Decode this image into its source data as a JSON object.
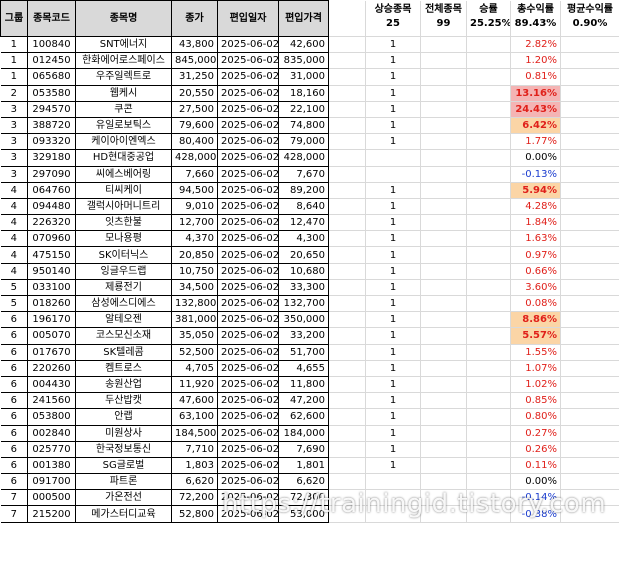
{
  "headers": {
    "group": "그룹",
    "code": "종목코드",
    "name": "종목명",
    "price": "종가",
    "date": "편입일자",
    "entry_price": "편입가격",
    "up_count": "상승종목",
    "total_count": "전체종목",
    "win_rate": "승률",
    "total_return": "총수익률",
    "avg_return": "평균수익률"
  },
  "summary": {
    "up_count": "25",
    "total_count": "99",
    "win_rate": "25.25%",
    "total_return": "89.43%",
    "avg_return": "0.90%"
  },
  "rows": [
    {
      "group": "1",
      "code": "100840",
      "name": "SNT에너지",
      "price": "43,800",
      "date": "2025-06-02",
      "entry": "42,600",
      "up": "1",
      "ret": "2.82%",
      "tone": "pos",
      "hl": ""
    },
    {
      "group": "1",
      "code": "012450",
      "name": "한화에어로스페이스",
      "price": "845,000",
      "date": "2025-06-02",
      "entry": "835,000",
      "up": "1",
      "ret": "1.20%",
      "tone": "pos",
      "hl": ""
    },
    {
      "group": "1",
      "code": "065680",
      "name": "우주일렉트로",
      "price": "31,250",
      "date": "2025-06-02",
      "entry": "31,000",
      "up": "1",
      "ret": "0.81%",
      "tone": "pos",
      "hl": ""
    },
    {
      "group": "2",
      "code": "053580",
      "name": "웹케시",
      "price": "20,550",
      "date": "2025-06-02",
      "entry": "18,160",
      "up": "1",
      "ret": "13.16%",
      "tone": "pos",
      "hl": "red"
    },
    {
      "group": "3",
      "code": "294570",
      "name": "쿠콘",
      "price": "27,500",
      "date": "2025-06-02",
      "entry": "22,100",
      "up": "1",
      "ret": "24.43%",
      "tone": "pos",
      "hl": "red"
    },
    {
      "group": "3",
      "code": "388720",
      "name": "유일로보틱스",
      "price": "79,600",
      "date": "2025-06-02",
      "entry": "74,800",
      "up": "1",
      "ret": "6.42%",
      "tone": "pos",
      "hl": "orange"
    },
    {
      "group": "3",
      "code": "093320",
      "name": "케이아이엔엑스",
      "price": "80,400",
      "date": "2025-06-02",
      "entry": "79,000",
      "up": "1",
      "ret": "1.77%",
      "tone": "pos",
      "hl": ""
    },
    {
      "group": "3",
      "code": "329180",
      "name": "HD현대중공업",
      "price": "428,000",
      "date": "2025-06-02",
      "entry": "428,000",
      "up": "",
      "ret": "0.00%",
      "tone": "zero",
      "hl": ""
    },
    {
      "group": "3",
      "code": "297090",
      "name": "씨에스베어링",
      "price": "7,660",
      "date": "2025-06-02",
      "entry": "7,670",
      "up": "",
      "ret": "-0.13%",
      "tone": "neg",
      "hl": ""
    },
    {
      "group": "4",
      "code": "064760",
      "name": "티씨케이",
      "price": "94,500",
      "date": "2025-06-02",
      "entry": "89,200",
      "up": "1",
      "ret": "5.94%",
      "tone": "pos",
      "hl": "orange"
    },
    {
      "group": "4",
      "code": "094480",
      "name": "갤럭시아머니트리",
      "price": "9,010",
      "date": "2025-06-02",
      "entry": "8,640",
      "up": "1",
      "ret": "4.28%",
      "tone": "pos",
      "hl": ""
    },
    {
      "group": "4",
      "code": "226320",
      "name": "잇츠한불",
      "price": "12,700",
      "date": "2025-06-02",
      "entry": "12,470",
      "up": "1",
      "ret": "1.84%",
      "tone": "pos",
      "hl": ""
    },
    {
      "group": "4",
      "code": "070960",
      "name": "모나용평",
      "price": "4,370",
      "date": "2025-06-02",
      "entry": "4,300",
      "up": "1",
      "ret": "1.63%",
      "tone": "pos",
      "hl": ""
    },
    {
      "group": "4",
      "code": "475150",
      "name": "SK이터닉스",
      "price": "20,850",
      "date": "2025-06-02",
      "entry": "20,650",
      "up": "1",
      "ret": "0.97%",
      "tone": "pos",
      "hl": ""
    },
    {
      "group": "4",
      "code": "950140",
      "name": "잉글우드랩",
      "price": "10,750",
      "date": "2025-06-02",
      "entry": "10,680",
      "up": "1",
      "ret": "0.66%",
      "tone": "pos",
      "hl": ""
    },
    {
      "group": "5",
      "code": "033100",
      "name": "제룡전기",
      "price": "34,500",
      "date": "2025-06-02",
      "entry": "33,300",
      "up": "1",
      "ret": "3.60%",
      "tone": "pos",
      "hl": ""
    },
    {
      "group": "5",
      "code": "018260",
      "name": "삼성에스디에스",
      "price": "132,800",
      "date": "2025-06-02",
      "entry": "132,700",
      "up": "1",
      "ret": "0.08%",
      "tone": "pos",
      "hl": ""
    },
    {
      "group": "6",
      "code": "196170",
      "name": "알테오젠",
      "price": "381,000",
      "date": "2025-06-02",
      "entry": "350,000",
      "up": "1",
      "ret": "8.86%",
      "tone": "pos",
      "hl": "orange"
    },
    {
      "group": "6",
      "code": "005070",
      "name": "코스모신소재",
      "price": "35,050",
      "date": "2025-06-02",
      "entry": "33,200",
      "up": "1",
      "ret": "5.57%",
      "tone": "pos",
      "hl": "orange"
    },
    {
      "group": "6",
      "code": "017670",
      "name": "SK텔레콤",
      "price": "52,500",
      "date": "2025-06-02",
      "entry": "51,700",
      "up": "1",
      "ret": "1.55%",
      "tone": "pos",
      "hl": ""
    },
    {
      "group": "6",
      "code": "220260",
      "name": "켐트로스",
      "price": "4,705",
      "date": "2025-06-02",
      "entry": "4,655",
      "up": "1",
      "ret": "1.07%",
      "tone": "pos",
      "hl": ""
    },
    {
      "group": "6",
      "code": "004430",
      "name": "송원산업",
      "price": "11,920",
      "date": "2025-06-02",
      "entry": "11,800",
      "up": "1",
      "ret": "1.02%",
      "tone": "pos",
      "hl": ""
    },
    {
      "group": "6",
      "code": "241560",
      "name": "두산밥캣",
      "price": "47,600",
      "date": "2025-06-02",
      "entry": "47,200",
      "up": "1",
      "ret": "0.85%",
      "tone": "pos",
      "hl": ""
    },
    {
      "group": "6",
      "code": "053800",
      "name": "안랩",
      "price": "63,100",
      "date": "2025-06-02",
      "entry": "62,600",
      "up": "1",
      "ret": "0.80%",
      "tone": "pos",
      "hl": ""
    },
    {
      "group": "6",
      "code": "002840",
      "name": "미원상사",
      "price": "184,500",
      "date": "2025-06-02",
      "entry": "184,000",
      "up": "1",
      "ret": "0.27%",
      "tone": "pos",
      "hl": ""
    },
    {
      "group": "6",
      "code": "025770",
      "name": "한국정보통신",
      "price": "7,710",
      "date": "2025-06-02",
      "entry": "7,690",
      "up": "1",
      "ret": "0.26%",
      "tone": "pos",
      "hl": ""
    },
    {
      "group": "6",
      "code": "001380",
      "name": "SG글로벌",
      "price": "1,803",
      "date": "2025-06-02",
      "entry": "1,801",
      "up": "1",
      "ret": "0.11%",
      "tone": "pos",
      "hl": ""
    },
    {
      "group": "6",
      "code": "091700",
      "name": "파트론",
      "price": "6,620",
      "date": "2025-06-02",
      "entry": "6,620",
      "up": "",
      "ret": "0.00%",
      "tone": "zero",
      "hl": ""
    },
    {
      "group": "7",
      "code": "000500",
      "name": "가온전선",
      "price": "72,200",
      "date": "2025-06-02",
      "entry": "72,300",
      "up": "",
      "ret": "-0.14%",
      "tone": "neg",
      "hl": ""
    },
    {
      "group": "7",
      "code": "215200",
      "name": "메가스터디교육",
      "price": "52,800",
      "date": "2025-06-02",
      "entry": "53,000",
      "up": "",
      "ret": "-0.38%",
      "tone": "neg",
      "hl": ""
    }
  ],
  "watermark": "https://trainingid.tistory.com"
}
